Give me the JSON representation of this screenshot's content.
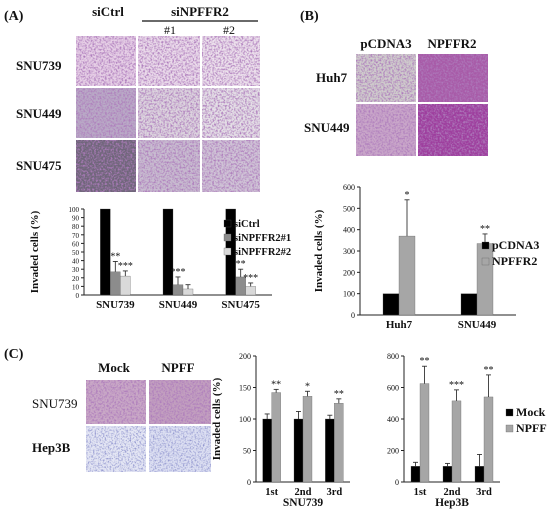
{
  "panels": {
    "A": {
      "label": "(A)",
      "col_labels": [
        "siCtrl",
        "siNPFFR2",
        "#1",
        "#2"
      ],
      "row_labels": [
        "SNU739",
        "SNU449",
        "SNU475"
      ]
    },
    "B": {
      "label": "(B)",
      "col_labels": [
        "pCDNA3",
        "NPFFR2"
      ],
      "row_labels": [
        "Huh7",
        "SNU449"
      ]
    },
    "C": {
      "label": "(C)",
      "col_labels": [
        "Mock",
        "NPFF"
      ],
      "row_labels": [
        "SNU739",
        "Hep3B"
      ]
    }
  },
  "chart_data": [
    {
      "id": "A",
      "type": "bar",
      "categories": [
        "SNU739",
        "SNU449",
        "SNU475"
      ],
      "series": [
        {
          "name": "siCtrl",
          "values": [
            100,
            100,
            100
          ],
          "errors": [
            0,
            0,
            0
          ],
          "sig": [
            "",
            "",
            ""
          ],
          "color": "#000000"
        },
        {
          "name": "siNPFFR2#1",
          "values": [
            27,
            12,
            21
          ],
          "errors": [
            12,
            9,
            9
          ],
          "sig": [
            "**",
            "***",
            "**"
          ],
          "color": "#8c8c8c"
        },
        {
          "name": "siNPFFR2#2",
          "values": [
            22,
            7,
            10
          ],
          "errors": [
            6,
            5,
            4
          ],
          "sig": [
            "***",
            "",
            "***"
          ],
          "color": "#d9d9d9"
        }
      ],
      "ylabel": "Invaded cells (%)",
      "ylim": [
        0,
        100
      ],
      "yticks": [
        "0",
        "10",
        "20",
        "30",
        "40",
        "50",
        "60",
        "70",
        "80",
        "90",
        "100"
      ],
      "legend": "right"
    },
    {
      "id": "B",
      "type": "bar",
      "categories": [
        "Huh7",
        "SNU449"
      ],
      "series": [
        {
          "name": "pCDNA3",
          "values": [
            100,
            100
          ],
          "errors": [
            0,
            0
          ],
          "sig": [
            "",
            ""
          ],
          "color": "#000000"
        },
        {
          "name": "NPFFR2",
          "values": [
            370,
            335
          ],
          "errors": [
            170,
            45
          ],
          "sig": [
            "*",
            "**"
          ],
          "color": "#a6a6a6"
        }
      ],
      "ylabel": "Invaded cells (%)",
      "ylim": [
        0,
        600
      ],
      "yticks": [
        "0",
        "100",
        "200",
        "300",
        "400",
        "500",
        "600"
      ],
      "legend": "right"
    },
    {
      "id": "C1",
      "type": "bar",
      "categories": [
        "1st",
        "2nd",
        "3rd"
      ],
      "xlabel": "SNU739",
      "series": [
        {
          "name": "Mock",
          "values": [
            100,
            100,
            100
          ],
          "errors": [
            8,
            12,
            6
          ],
          "sig": [
            "",
            "",
            ""
          ],
          "color": "#000000"
        },
        {
          "name": "NPFF",
          "values": [
            142,
            136,
            125
          ],
          "errors": [
            5,
            8,
            7
          ],
          "sig": [
            "**",
            "*",
            "**"
          ],
          "color": "#a6a6a6"
        }
      ],
      "ylabel": "Invaded cells (%)",
      "ylim": [
        0,
        200
      ],
      "yticks": [
        "0",
        "50",
        "100",
        "150",
        "200"
      ]
    },
    {
      "id": "C2",
      "type": "bar",
      "categories": [
        "1st",
        "2nd",
        "3rd"
      ],
      "xlabel": "Hep3B",
      "series": [
        {
          "name": "Mock",
          "values": [
            100,
            100,
            100
          ],
          "errors": [
            25,
            18,
            75
          ],
          "sig": [
            "",
            "",
            ""
          ],
          "color": "#000000"
        },
        {
          "name": "NPFF",
          "values": [
            625,
            515,
            540
          ],
          "errors": [
            110,
            70,
            140
          ],
          "sig": [
            "**",
            "***",
            "**"
          ],
          "color": "#a6a6a6"
        }
      ],
      "ylim": [
        0,
        800
      ],
      "yticks": [
        "0",
        "200",
        "400",
        "600",
        "800"
      ],
      "legend": "right"
    }
  ]
}
